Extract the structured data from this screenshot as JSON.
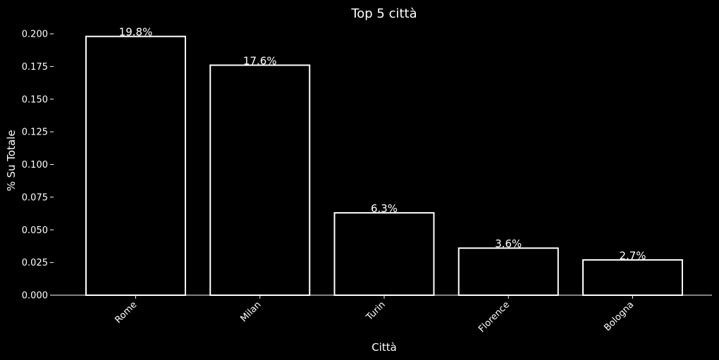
{
  "chart_data": {
    "type": "bar",
    "title": "Top 5 città",
    "xlabel": "Città",
    "ylabel": "% Su Totale",
    "categories": [
      "Rome",
      "Milan",
      "Turin",
      "Florence",
      "Bologna"
    ],
    "values": [
      0.198,
      0.176,
      0.063,
      0.036,
      0.027
    ],
    "data_labels": [
      "19.8%",
      "17.6%",
      "6.3%",
      "3.6%",
      "2.7%"
    ],
    "ylim": [
      0,
      0.2
    ],
    "yticks": [
      "0.000",
      "0.025",
      "0.050",
      "0.075",
      "0.100",
      "0.125",
      "0.150",
      "0.175",
      "0.200"
    ],
    "grid": false,
    "colors": {
      "background": "#000000",
      "bar_fill": "#000000",
      "bar_edge": "#ffffff",
      "text": "#ffffff"
    }
  }
}
